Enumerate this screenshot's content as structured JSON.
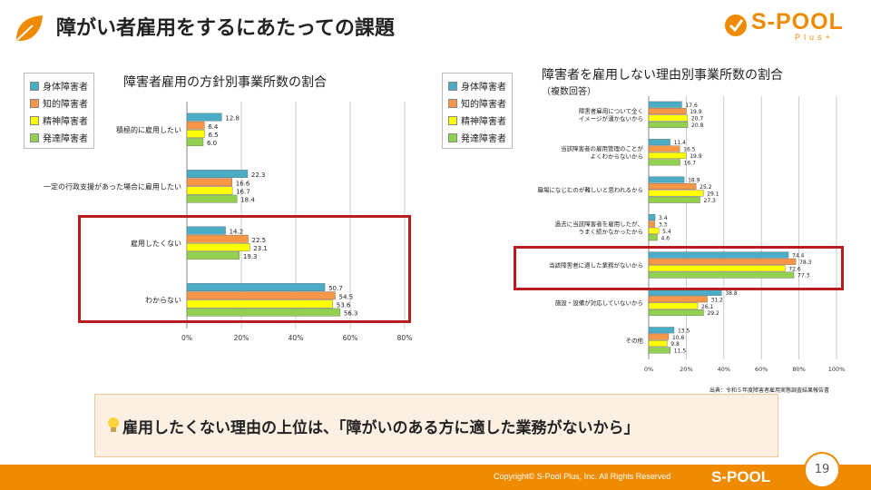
{
  "header": {
    "title": "障がい者雇用をするにあたっての課題"
  },
  "logo": {
    "text": "S-POOL",
    "sub": "Plus+"
  },
  "legend": [
    {
      "name": "身体障害者",
      "color": "#4bacc6"
    },
    {
      "name": "知的障害者",
      "color": "#f79646"
    },
    {
      "name": "精神障害者",
      "color": "#ffff00"
    },
    {
      "name": "発達障害者",
      "color": "#92d050"
    }
  ],
  "chart_data": [
    {
      "type": "bar",
      "orientation": "horizontal",
      "title": "障害者雇用の方針別事業所数の割合",
      "categories": [
        "積極的に雇用したい",
        "一定の行政支援があった場合に雇用したい",
        "雇用したくない",
        "わからない"
      ],
      "series": [
        {
          "name": "身体障害者",
          "values": [
            12.8,
            22.3,
            14.2,
            50.7
          ]
        },
        {
          "name": "知的障害者",
          "values": [
            6.4,
            16.6,
            22.5,
            54.5
          ]
        },
        {
          "name": "精神障害者",
          "values": [
            6.5,
            16.7,
            23.1,
            53.6
          ]
        },
        {
          "name": "発達障害者",
          "values": [
            6.0,
            18.4,
            19.3,
            56.3
          ]
        }
      ],
      "xlim": [
        0,
        80
      ],
      "ticks": [
        "0%",
        "20%",
        "40%",
        "60%",
        "80%"
      ],
      "grid": true,
      "legend_position": "left"
    },
    {
      "type": "bar",
      "orientation": "horizontal",
      "title": "障害者を雇用しない理由別事業所数の割合",
      "subtitle": "（複数回答）",
      "categories": [
        [
          "障害者雇用について全く",
          "イメージが湧かないから"
        ],
        [
          "当該障害者の雇用管理のことが",
          "よくわからないから"
        ],
        [
          "職場になじむのが難しいと思われるから"
        ],
        [
          "過去に当該障害者を雇用したが、",
          "うまく続かなかったから"
        ],
        [
          "当該障害者に適した業務がないから"
        ],
        [
          "施設・設備が対応していないから"
        ],
        [
          "その他"
        ]
      ],
      "series": [
        {
          "name": "身体障害者",
          "values": [
            17.6,
            11.4,
            18.9,
            3.4,
            74.4,
            38.8,
            13.5
          ]
        },
        {
          "name": "知的障害者",
          "values": [
            19.9,
            16.5,
            25.2,
            3.3,
            78.3,
            31.2,
            10.6
          ]
        },
        {
          "name": "精神障害者",
          "values": [
            20.7,
            19.9,
            29.1,
            5.4,
            72.6,
            26.1,
            9.8
          ]
        },
        {
          "name": "発達障害者",
          "values": [
            20.8,
            16.7,
            27.3,
            4.6,
            77.3,
            29.2,
            11.5
          ]
        }
      ],
      "xlim": [
        0,
        100
      ],
      "ticks": [
        "0%",
        "20%",
        "40%",
        "60%",
        "80%",
        "100%"
      ],
      "grid": true,
      "legend_position": "left"
    }
  ],
  "source": "出典：令和５年度障害者雇用実態調査結果報告書",
  "callout": {
    "text": "雇用したくない理由の上位は、「障がいのある方に適した業務がないから」"
  },
  "footer": {
    "copyright": "Copyright© S-Pool Plus, Inc. All Rights Reserved",
    "logo": "S-POOL",
    "page": "19"
  }
}
